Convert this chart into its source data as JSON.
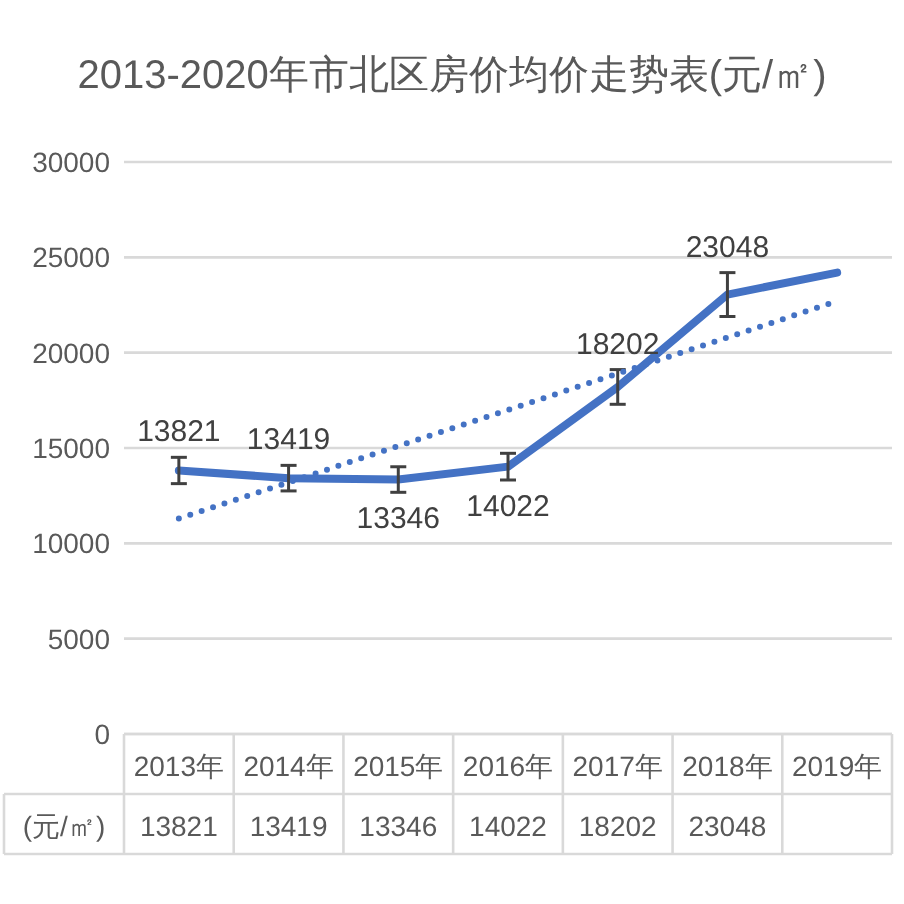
{
  "chart_data": {
    "type": "line",
    "title": "2013-2020年市北区房价均价走势表(元/㎡)",
    "categories": [
      "2013年",
      "2014年",
      "2015年",
      "2016年",
      "2017年",
      "2018年",
      "2019年"
    ],
    "series": [
      {
        "name": "(元/㎡)",
        "type": "line",
        "color": "#4472c4",
        "values": [
          13821,
          13419,
          13346,
          14022,
          18202,
          23048,
          24200
        ],
        "errors": [
          690,
          670,
          670,
          700,
          910,
          1150,
          null
        ],
        "value_labels": [
          "13821",
          "13419",
          "13346",
          "14022",
          "18202",
          "23048",
          null
        ]
      },
      {
        "color": "#4472c4",
        "line_style": "dotted",
        "values": [
          11300,
          13200,
          15100,
          17000,
          18900,
          20800,
          22700
        ]
      }
    ],
    "ylim": [
      0,
      30000
    ],
    "yticks": [
      0,
      5000,
      10000,
      15000,
      20000,
      25000,
      30000
    ],
    "grid": "y",
    "marker": "none",
    "line_style": "solid"
  }
}
